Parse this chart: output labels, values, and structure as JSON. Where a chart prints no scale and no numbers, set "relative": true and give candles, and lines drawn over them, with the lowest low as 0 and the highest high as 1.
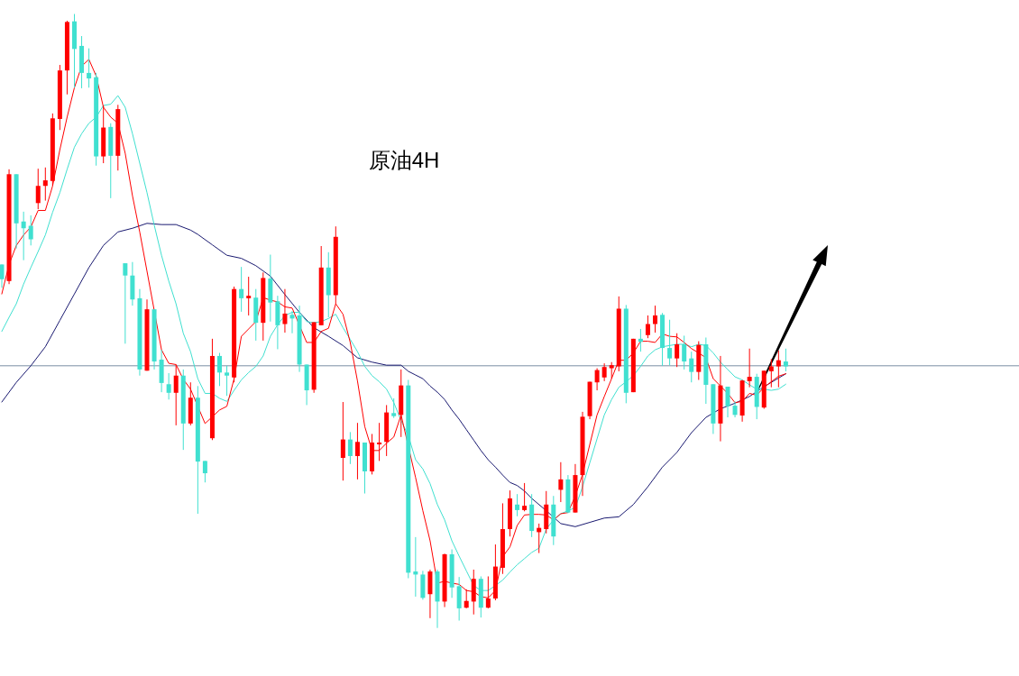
{
  "chart_data": {
    "type": "candlestick",
    "title": "原油4H",
    "relative": true,
    "categories": [
      null,
      null,
      null,
      null,
      null,
      null,
      null,
      null,
      null,
      null,
      null,
      null,
      null,
      null,
      null,
      null,
      null,
      null,
      null,
      null,
      null,
      null,
      null,
      null,
      null,
      null,
      null,
      null,
      null,
      null,
      null,
      null,
      null,
      null,
      null,
      null,
      null,
      null,
      null,
      null,
      null,
      null,
      null,
      null,
      null,
      null,
      null,
      null,
      null,
      null,
      null,
      null,
      null,
      null,
      null,
      null,
      null,
      null,
      null,
      null,
      null,
      null,
      null,
      null,
      null,
      null,
      null,
      null,
      null,
      null,
      null,
      null,
      null,
      null,
      null,
      null,
      null,
      null,
      null,
      null,
      null,
      null,
      null,
      null,
      null,
      null,
      null,
      null,
      null,
      null,
      null,
      null,
      null,
      null,
      null,
      null,
      null,
      null,
      null,
      null,
      null,
      null,
      null,
      null,
      null,
      null,
      null,
      null,
      null
    ],
    "colors": [
      "#40e0d0",
      "#ff0000",
      "#40e0d0",
      "#40e0d0",
      "#40e0d0",
      "#ff0000",
      "#ff0000",
      "#ff0000",
      "#ff0000",
      "#ff0000",
      "#40e0d0",
      "#40e0d0",
      "#40e0d0",
      "#40e0d0",
      "#ff0000",
      "#40e0d0",
      "#ff0000",
      "#40e0d0",
      "#40e0d0",
      "#40e0d0",
      "#ff0000",
      "#40e0d0",
      "#40e0d0",
      "#40e0d0",
      "#ff0000",
      "#40e0d0",
      "#ff0000",
      "#40e0d0",
      "#40e0d0",
      "#ff0000",
      "#40e0d0",
      "#40e0d0",
      "#ff0000",
      "#40e0d0",
      "#ff0000",
      "#40e0d0",
      "#ff0000",
      "#40e0d0",
      "#40e0d0",
      "#ff0000",
      "#40e0d0",
      "#40e0d0",
      "#40e0d0",
      "#ff0000",
      "#ff0000",
      "#40e0d0",
      "#ff0000",
      "#ff0000",
      "#40e0d0",
      "#ff0000",
      "#40e0d0",
      "#ff0000",
      "#ff0000",
      "#ff0000",
      "#40e0d0",
      "#ff0000",
      "#40e0d0",
      "#40e0d0",
      "#40e0d0",
      "#ff0000",
      "#40e0d0",
      "#ff0000",
      "#40e0d0",
      "#40e0d0",
      "#ff0000",
      "#ff0000",
      "#40e0d0",
      "#ff0000",
      "#ff0000",
      "#ff0000",
      "#ff0000",
      "#40e0d0",
      "#ff0000",
      "#40e0d0",
      "#ff0000",
      "#ff0000",
      "#40e0d0",
      "#ff0000",
      "#40e0d0",
      "#ff0000",
      "#ff0000",
      "#ff0000",
      "#ff0000",
      "#ff0000",
      "#ff0000",
      "#ff0000",
      "#40e0d0",
      "#ff0000",
      "#40e0d0",
      "#ff0000",
      "#ff0000",
      "#40e0d0",
      "#40e0d0",
      "#ff0000",
      "#40e0d0",
      "#40e0d0",
      "#ff0000",
      "#40e0d0",
      "#40e0d0",
      "#ff0000",
      "#40e0d0",
      "#40e0d0",
      "#ff0000",
      "#ff0000",
      "#40e0d0",
      "#ff0000",
      "#ff0000",
      "#ff0000",
      "#40e0d0"
    ],
    "ohlc": [
      [
        0.592,
        0.592,
        0.554,
        0.568
      ],
      [
        0.565,
        0.747,
        0.56,
        0.739
      ],
      [
        0.739,
        0.739,
        0.618,
        0.659
      ],
      [
        0.662,
        0.678,
        0.599,
        0.651
      ],
      [
        0.655,
        0.672,
        0.623,
        0.633
      ],
      [
        0.692,
        0.748,
        0.682,
        0.72
      ],
      [
        0.72,
        0.75,
        0.696,
        0.729
      ],
      [
        0.728,
        0.838,
        0.72,
        0.83
      ],
      [
        0.829,
        0.917,
        0.811,
        0.908
      ],
      [
        0.908,
        0.989,
        0.869,
        0.987
      ],
      [
        0.988,
        1.0,
        0.88,
        0.943
      ],
      [
        0.948,
        0.964,
        0.879,
        0.904
      ],
      [
        0.904,
        0.944,
        0.88,
        0.895
      ],
      [
        0.897,
        0.904,
        0.753,
        0.768
      ],
      [
        0.768,
        0.851,
        0.757,
        0.815
      ],
      [
        0.816,
        0.822,
        0.7,
        0.769
      ],
      [
        0.769,
        0.852,
        0.745,
        0.845
      ],
      [
        0.594,
        0.594,
        0.463,
        0.574
      ],
      [
        0.574,
        0.596,
        0.525,
        0.535
      ],
      [
        0.537,
        0.552,
        0.411,
        0.421
      ],
      [
        0.419,
        0.535,
        0.419,
        0.519
      ],
      [
        0.519,
        0.519,
        0.421,
        0.434
      ],
      [
        0.437,
        0.453,
        0.384,
        0.399
      ],
      [
        0.397,
        0.415,
        0.372,
        0.383
      ],
      [
        0.383,
        0.429,
        0.33,
        0.411
      ],
      [
        0.411,
        0.421,
        0.29,
        0.333
      ],
      [
        0.333,
        0.4,
        0.33,
        0.375
      ],
      [
        0.375,
        0.394,
        0.186,
        0.271
      ],
      [
        0.272,
        0.272,
        0.237,
        0.252
      ],
      [
        0.309,
        0.471,
        0.306,
        0.443
      ],
      [
        0.443,
        0.448,
        0.394,
        0.416
      ],
      [
        0.416,
        0.427,
        0.378,
        0.411
      ],
      [
        0.408,
        0.556,
        0.4,
        0.552
      ],
      [
        0.552,
        0.588,
        0.515,
        0.537
      ],
      [
        0.537,
        0.572,
        0.509,
        0.541
      ],
      [
        0.538,
        0.552,
        0.468,
        0.497
      ],
      [
        0.497,
        0.579,
        0.468,
        0.57
      ],
      [
        0.569,
        0.608,
        0.499,
        0.53
      ],
      [
        0.532,
        0.541,
        0.454,
        0.493
      ],
      [
        0.495,
        0.552,
        0.481,
        0.512
      ],
      [
        0.51,
        0.516,
        0.48,
        0.504
      ],
      [
        0.509,
        0.525,
        0.417,
        0.429
      ],
      [
        0.429,
        0.429,
        0.363,
        0.387
      ],
      [
        0.388,
        0.498,
        0.383,
        0.498
      ],
      [
        0.493,
        0.622,
        0.493,
        0.587
      ],
      [
        0.587,
        0.612,
        0.506,
        0.542
      ],
      [
        0.542,
        0.654,
        0.528,
        0.637
      ],
      [
        0.277,
        0.368,
        0.24,
        0.307
      ],
      [
        0.307,
        0.319,
        0.267,
        0.28
      ],
      [
        0.28,
        0.334,
        0.242,
        0.303
      ],
      [
        0.302,
        0.302,
        0.219,
        0.255
      ],
      [
        0.255,
        0.316,
        0.25,
        0.302
      ],
      [
        0.299,
        0.334,
        0.272,
        0.302
      ],
      [
        0.303,
        0.363,
        0.28,
        0.351
      ],
      [
        0.35,
        0.374,
        0.342,
        0.345
      ],
      [
        0.347,
        0.421,
        0.311,
        0.395
      ],
      [
        0.395,
        0.404,
        0.081,
        0.09
      ],
      [
        0.092,
        0.148,
        0.051,
        0.087
      ],
      [
        0.087,
        0.093,
        0.046,
        0.049
      ],
      [
        0.055,
        0.095,
        0.016,
        0.092
      ],
      [
        0.092,
        0.095,
        0.0,
        0.043
      ],
      [
        0.043,
        0.121,
        0.034,
        0.12
      ],
      [
        0.12,
        0.128,
        0.049,
        0.066
      ],
      [
        0.068,
        0.083,
        0.012,
        0.032
      ],
      [
        0.033,
        0.063,
        0.032,
        0.044
      ],
      [
        0.043,
        0.095,
        0.022,
        0.08
      ],
      [
        0.08,
        0.084,
        0.017,
        0.033
      ],
      [
        0.033,
        0.084,
        0.032,
        0.048
      ],
      [
        0.048,
        0.136,
        0.045,
        0.1
      ],
      [
        0.098,
        0.203,
        0.088,
        0.161
      ],
      [
        0.161,
        0.224,
        0.149,
        0.211
      ],
      [
        0.201,
        0.218,
        0.182,
        0.192
      ],
      [
        0.192,
        0.236,
        0.19,
        0.199
      ],
      [
        0.201,
        0.218,
        0.148,
        0.158
      ],
      [
        0.156,
        0.17,
        0.122,
        0.163
      ],
      [
        0.161,
        0.223,
        0.154,
        0.201
      ],
      [
        0.201,
        0.215,
        0.135,
        0.149
      ],
      [
        0.225,
        0.27,
        0.205,
        0.242
      ],
      [
        0.242,
        0.249,
        0.187,
        0.188
      ],
      [
        0.188,
        0.267,
        0.188,
        0.249
      ],
      [
        0.249,
        0.352,
        0.215,
        0.344
      ],
      [
        0.345,
        0.401,
        0.34,
        0.401
      ],
      [
        0.4,
        0.423,
        0.387,
        0.42
      ],
      [
        0.408,
        0.431,
        0.402,
        0.425
      ],
      [
        0.423,
        0.433,
        0.406,
        0.428
      ],
      [
        0.426,
        0.54,
        0.418,
        0.52
      ],
      [
        0.52,
        0.526,
        0.366,
        0.383
      ],
      [
        0.384,
        0.471,
        0.384,
        0.471
      ],
      [
        0.471,
        0.487,
        0.45,
        0.466
      ],
      [
        0.477,
        0.509,
        0.472,
        0.495
      ],
      [
        0.495,
        0.525,
        0.481,
        0.509
      ],
      [
        0.51,
        0.513,
        0.427,
        0.456
      ],
      [
        0.456,
        0.502,
        0.428,
        0.439
      ],
      [
        0.439,
        0.48,
        0.425,
        0.462
      ],
      [
        0.462,
        0.476,
        0.421,
        0.434
      ],
      [
        0.439,
        0.45,
        0.4,
        0.417
      ],
      [
        0.417,
        0.467,
        0.404,
        0.461
      ],
      [
        0.462,
        0.473,
        0.365,
        0.396
      ],
      [
        0.397,
        0.397,
        0.316,
        0.333
      ],
      [
        0.333,
        0.443,
        0.304,
        0.395
      ],
      [
        0.393,
        0.393,
        0.343,
        0.361
      ],
      [
        0.362,
        0.369,
        0.343,
        0.347
      ],
      [
        0.346,
        0.404,
        0.336,
        0.403
      ],
      [
        0.402,
        0.455,
        0.392,
        0.409
      ],
      [
        0.409,
        0.414,
        0.34,
        0.36
      ],
      [
        0.359,
        0.419,
        0.357,
        0.419
      ],
      [
        0.418,
        0.438,
        0.392,
        0.426
      ],
      [
        0.426,
        0.452,
        0.392,
        0.436
      ],
      [
        0.434,
        0.455,
        0.418,
        0.426
      ]
    ],
    "series": [
      {
        "type": "line",
        "color": "#191970",
        "values": [
          0.368,
          null,
          0.4,
          null,
          0.427,
          null,
          0.458,
          null,
          0.501,
          null,
          0.544,
          null,
          0.587,
          null,
          0.623,
          null,
          0.645,
          null,
          0.651,
          null,
          0.659,
          null,
          0.657,
          null,
          0.657,
          null,
          0.648,
          0.641,
          null,
          0.624,
          null,
          0.607,
          null,
          0.602,
          null,
          0.59,
          null,
          0.573,
          null,
          0.543,
          null,
          0.514,
          null,
          0.489,
          null,
          0.475,
          null,
          0.46,
          null,
          0.44,
          null,
          0.433,
          null,
          0.428,
          null,
          0.428,
          0.418,
          0.412,
          0.406,
          0.394,
          0.384,
          0.372,
          0.355,
          0.34,
          0.323,
          0.306,
          0.289,
          0.274,
          0.262,
          0.249,
          0.237,
          0.232,
          0.223,
          0.211,
          null,
          0.191,
          null,
          0.17,
          null,
          0.165,
          null,
          0.172,
          null,
          0.179,
          null,
          0.181,
          null,
          0.201,
          null,
          0.23,
          null,
          0.262,
          null,
          0.286,
          null,
          0.318,
          null,
          0.343,
          null,
          0.357,
          null,
          0.366,
          null,
          0.377,
          null,
          0.393,
          null,
          0.407,
          0.414
        ]
      },
      {
        "type": "line",
        "color": "#40e0d0",
        "values": [
          0.483,
          0.506,
          0.528,
          0.56,
          0.587,
          0.613,
          0.64,
          0.677,
          0.709,
          0.747,
          0.783,
          0.805,
          0.822,
          0.832,
          0.851,
          0.853,
          0.867,
          0.848,
          0.805,
          0.757,
          0.709,
          0.656,
          0.607,
          0.565,
          0.528,
          0.48,
          0.45,
          0.406,
          0.382,
          0.382,
          0.374,
          0.369,
          0.387,
          0.404,
          0.416,
          0.426,
          0.443,
          0.475,
          0.494,
          0.509,
          0.514,
          0.514,
          0.499,
          0.497,
          0.499,
          0.504,
          0.511,
          0.489,
          0.47,
          0.45,
          0.426,
          0.411,
          0.401,
          0.389,
          0.367,
          0.338,
          0.313,
          0.274,
          0.259,
          0.235,
          0.201,
          0.176,
          0.142,
          0.117,
          0.093,
          0.069,
          0.061,
          0.061,
          0.069,
          0.078,
          0.091,
          0.103,
          0.113,
          0.123,
          0.13,
          0.161,
          0.176,
          0.186,
          0.191,
          0.196,
          0.23,
          0.269,
          0.308,
          0.347,
          0.372,
          0.392,
          0.401,
          0.411,
          0.426,
          0.443,
          0.453,
          0.458,
          0.46,
          0.462,
          0.462,
          0.458,
          0.462,
          0.46,
          0.448,
          0.433,
          0.421,
          0.409,
          0.404,
          0.396,
          0.389,
          0.389,
          0.387,
          0.389,
          0.397
        ]
      },
      {
        "type": "line",
        "color": "#ff0000",
        "values": [
          0.544,
          0.592,
          0.623,
          0.64,
          0.653,
          0.68,
          0.68,
          0.72,
          0.779,
          0.832,
          0.88,
          0.915,
          0.926,
          0.899,
          0.848,
          0.832,
          0.822,
          0.773,
          0.704,
          0.645,
          0.581,
          null,
          0.453,
          0.431,
          0.429,
          0.405,
          0.389,
          null,
          0.333,
          0.344,
          0.355,
          0.361,
          0.406,
          0.475,
          0.487,
          0.499,
          0.538,
          0.534,
          0.531,
          0.523,
          0.521,
          null,
          0.465,
          0.465,
          0.483,
          0.488,
          0.528,
          0.511,
          0.465,
          0.402,
          0.328,
          0.289,
          0.289,
          0.301,
          0.311,
          0.347,
          null,
          0.245,
          0.191,
          0.142,
          0.073,
          0.076,
          0.073,
          0.071,
          0.061,
          0.059,
          0.051,
          0.049,
          0.061,
          0.116,
          0.132,
          0.167,
          0.184,
          0.185,
          0.185,
          0.184,
          0.176,
          0.186,
          0.188,
          0.215,
          0.25,
          0.299,
          0.347,
          0.377,
          0.406,
          0.436,
          0.436,
          0.448,
          0.467,
          0.467,
          0.465,
          0.479,
          0.475,
          0.474,
          0.465,
          0.455,
          0.448,
          0.44,
          0.406,
          0.394,
          0.382,
          0.367,
          0.369,
          0.382,
          0.379,
          0.392,
          0.401,
          0.41,
          0.414
        ]
      }
    ],
    "ref_lines": [
      {
        "axis": "y",
        "value": 0.427,
        "color": "#7a8ea4"
      }
    ]
  }
}
